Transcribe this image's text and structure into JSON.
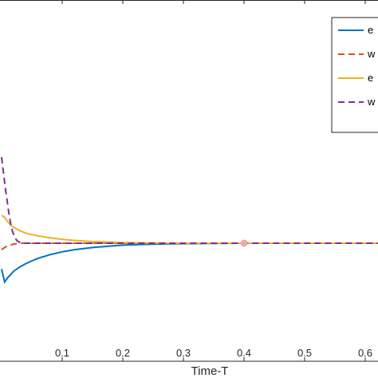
{
  "chart_data": {
    "type": "line",
    "title": "",
    "xlabel": "Time-T",
    "ylabel": "",
    "xlim": [
      0,
      0.65
    ],
    "ylim": [
      -0.8,
      0.6
    ],
    "xticks": [
      "0.1",
      "0.2",
      "0.3",
      "0.4",
      "0.5",
      "0.6"
    ],
    "grid": false,
    "legend_position": "top-right",
    "colors": {
      "series1": "#0072BD",
      "series2": "#D95319",
      "series3": "#EDB120",
      "series4": "#7E2F8E",
      "marker": "#F4A6A6"
    },
    "series": [
      {
        "name": "e",
        "style": "solid",
        "color": "#0072BD",
        "x": [
          0,
          0.005,
          0.01,
          0.015,
          0.02,
          0.03,
          0.04,
          0.05,
          0.06,
          0.08,
          0.1,
          0.12,
          0.15,
          0.18,
          0.2,
          0.25,
          0.3,
          0.35,
          0.4,
          0.5,
          0.6,
          0.65
        ],
        "y": [
          -0.12,
          -0.18,
          -0.16,
          -0.145,
          -0.13,
          -0.11,
          -0.095,
          -0.082,
          -0.07,
          -0.053,
          -0.04,
          -0.03,
          -0.02,
          -0.013,
          -0.009,
          -0.004,
          -0.002,
          -0.001,
          0,
          0,
          0,
          0
        ]
      },
      {
        "name": "w",
        "style": "dashed",
        "color": "#D95319",
        "x": [
          0,
          0.005,
          0.01,
          0.02,
          0.03,
          0.05,
          0.1,
          0.2,
          0.3,
          0.4,
          0.5,
          0.6,
          0.65
        ],
        "y": [
          -0.03,
          -0.02,
          -0.012,
          -0.004,
          0,
          0,
          0,
          0,
          0,
          0,
          0,
          0,
          0
        ]
      },
      {
        "name": "e",
        "style": "solid",
        "color": "#EDB120",
        "x": [
          0,
          0.005,
          0.01,
          0.015,
          0.02,
          0.03,
          0.04,
          0.05,
          0.06,
          0.08,
          0.1,
          0.12,
          0.15,
          0.18,
          0.2,
          0.25,
          0.3,
          0.35,
          0.4,
          0.5,
          0.6,
          0.65
        ],
        "y": [
          0.13,
          0.12,
          0.1,
          0.085,
          0.073,
          0.058,
          0.047,
          0.04,
          0.034,
          0.025,
          0.018,
          0.013,
          0.008,
          0.005,
          0.003,
          0.001,
          0,
          0,
          0,
          0,
          0,
          0
        ]
      },
      {
        "name": "w",
        "style": "dashed",
        "color": "#7E2F8E",
        "x": [
          0,
          0.003,
          0.006,
          0.009,
          0.012,
          0.015,
          0.018,
          0.022,
          0.026,
          0.03,
          0.04,
          0.05,
          0.1,
          0.2,
          0.3,
          0.4,
          0.5,
          0.6,
          0.65
        ],
        "y": [
          0.4,
          0.33,
          0.26,
          0.2,
          0.14,
          0.09,
          0.055,
          0.025,
          0.01,
          0.004,
          0,
          0,
          0,
          0,
          0,
          0,
          0,
          0,
          0
        ]
      }
    ],
    "markers": [
      {
        "x": 0.4,
        "y": 0
      }
    ]
  }
}
